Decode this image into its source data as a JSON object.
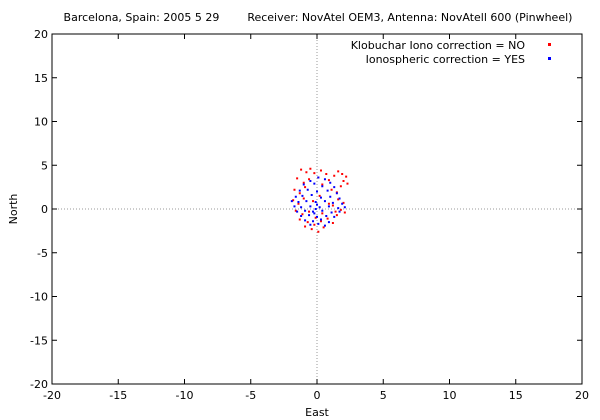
{
  "chart_data": {
    "type": "scatter",
    "title": "Barcelona, Spain: 2005 5 29        Receiver: NovAtel OEM3, Antenna: NovAtell 600 (Pinwheel)",
    "xlabel": "East",
    "ylabel": "North",
    "xlim": [
      -20,
      20
    ],
    "ylim": [
      -20,
      20
    ],
    "xticks": [
      -20,
      -15,
      -10,
      -5,
      0,
      5,
      10,
      15,
      20
    ],
    "yticks": [
      -20,
      -15,
      -10,
      -5,
      0,
      5,
      10,
      15,
      20
    ],
    "grid": false,
    "zero_axes": true,
    "legend_position": "top-right",
    "series": [
      {
        "name": "Klobuchar Iono correction = NO",
        "color": "#ff0000",
        "points": [
          [
            -1.2,
            4.5
          ],
          [
            -0.8,
            4.2
          ],
          [
            -0.5,
            4.6
          ],
          [
            -0.2,
            4.1
          ],
          [
            0.3,
            4.4
          ],
          [
            0.7,
            4.0
          ],
          [
            1.6,
            4.3
          ],
          [
            1.9,
            4.0
          ],
          [
            2.2,
            3.7
          ],
          [
            2.0,
            3.2
          ],
          [
            1.8,
            2.6
          ],
          [
            2.3,
            2.9
          ],
          [
            -1.5,
            3.5
          ],
          [
            -1.0,
            3.0
          ],
          [
            -0.6,
            3.4
          ],
          [
            0.1,
            3.6
          ],
          [
            0.9,
            3.3
          ],
          [
            1.3,
            3.8
          ],
          [
            -1.7,
            2.2
          ],
          [
            -1.3,
            1.8
          ],
          [
            -0.9,
            2.5
          ],
          [
            0.4,
            2.8
          ],
          [
            1.1,
            2.2
          ],
          [
            1.5,
            1.9
          ],
          [
            -1.8,
            1.0
          ],
          [
            -1.4,
            0.6
          ],
          [
            -1.0,
            1.2
          ],
          [
            1.6,
            1.1
          ],
          [
            2.0,
            0.7
          ],
          [
            1.2,
            0.4
          ],
          [
            -1.6,
            -0.2
          ],
          [
            -1.1,
            -0.6
          ],
          [
            1.4,
            -0.3
          ],
          [
            1.8,
            -0.1
          ],
          [
            2.1,
            -0.4
          ],
          [
            1.5,
            -0.7
          ],
          [
            -1.3,
            -1.2
          ],
          [
            -0.7,
            -1.5
          ],
          [
            -0.2,
            -1.8
          ],
          [
            0.3,
            -1.4
          ],
          [
            0.8,
            -1.1
          ],
          [
            1.2,
            -1.6
          ],
          [
            -0.4,
            -2.3
          ],
          [
            0.1,
            -2.6
          ],
          [
            0.5,
            -2.1
          ],
          [
            -0.9,
            -2.0
          ],
          [
            0.9,
            0.6
          ],
          [
            -0.3,
            0.9
          ],
          [
            0.4,
            -0.5
          ],
          [
            -0.6,
            -0.3
          ],
          [
            0.2,
            1.5
          ],
          [
            -0.1,
            -1.0
          ]
        ]
      },
      {
        "name": "Ionospheric correction = YES",
        "color": "#0000ff",
        "points": [
          [
            -0.5,
            3.2
          ],
          [
            0.1,
            3.6
          ],
          [
            0.6,
            3.4
          ],
          [
            1.0,
            3.0
          ],
          [
            -1.0,
            2.8
          ],
          [
            -0.2,
            2.9
          ],
          [
            0.4,
            2.6
          ],
          [
            1.3,
            2.5
          ],
          [
            -1.3,
            2.1
          ],
          [
            -0.7,
            2.2
          ],
          [
            0.0,
            2.0
          ],
          [
            0.8,
            2.1
          ],
          [
            1.5,
            1.8
          ],
          [
            -1.6,
            1.4
          ],
          [
            -1.1,
            1.5
          ],
          [
            -0.4,
            1.6
          ],
          [
            0.3,
            1.3
          ],
          [
            1.0,
            1.4
          ],
          [
            1.7,
            1.2
          ],
          [
            -1.9,
            0.9
          ],
          [
            -1.4,
            0.8
          ],
          [
            -0.8,
            0.9
          ],
          [
            -0.1,
            0.8
          ],
          [
            0.6,
            0.9
          ],
          [
            1.2,
            0.7
          ],
          [
            1.9,
            0.6
          ],
          [
            -1.7,
            0.3
          ],
          [
            -1.2,
            0.2
          ],
          [
            -0.5,
            0.3
          ],
          [
            0.2,
            0.2
          ],
          [
            0.9,
            0.3
          ],
          [
            1.6,
            0.1
          ],
          [
            2.1,
            0.2
          ],
          [
            -1.5,
            -0.3
          ],
          [
            -0.9,
            -0.2
          ],
          [
            -0.3,
            -0.3
          ],
          [
            0.4,
            -0.2
          ],
          [
            1.1,
            -0.4
          ],
          [
            1.7,
            -0.3
          ],
          [
            -1.2,
            -0.8
          ],
          [
            -0.6,
            -0.7
          ],
          [
            0.0,
            -0.9
          ],
          [
            0.7,
            -0.8
          ],
          [
            1.3,
            -0.9
          ],
          [
            -0.9,
            -1.3
          ],
          [
            -0.3,
            -1.4
          ],
          [
            0.3,
            -1.2
          ],
          [
            0.9,
            -1.5
          ],
          [
            -0.5,
            -1.8
          ],
          [
            0.1,
            -1.7
          ],
          [
            0.6,
            -1.9
          ],
          [
            -0.1,
            0.0
          ],
          [
            0.0,
            0.5
          ],
          [
            -0.2,
            -0.5
          ]
        ]
      }
    ]
  }
}
